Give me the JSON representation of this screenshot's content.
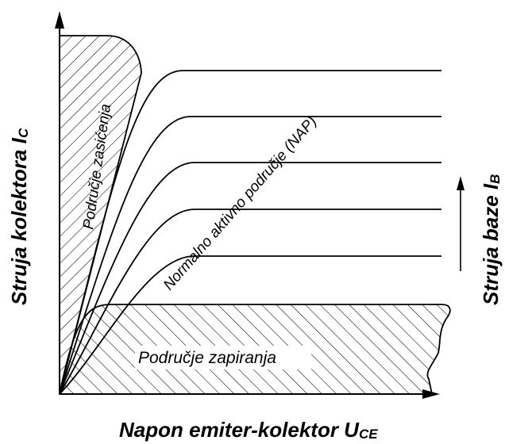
{
  "diagram": {
    "x_axis_label": {
      "main": "Napon emiter-kolektor U",
      "sub": "CE"
    },
    "y_axis_label": {
      "main": "Struja kolektora I",
      "sub": "C"
    },
    "base_current_label": {
      "main": "Struja baze I",
      "sub": "B"
    },
    "regions": {
      "saturation": "Područje zasićenja",
      "active": "Normalno aktivno područje   (NAP)",
      "cutoff": "Područje zapiranja"
    },
    "colors": {
      "line": "#000000",
      "background": "#ffffff"
    }
  }
}
